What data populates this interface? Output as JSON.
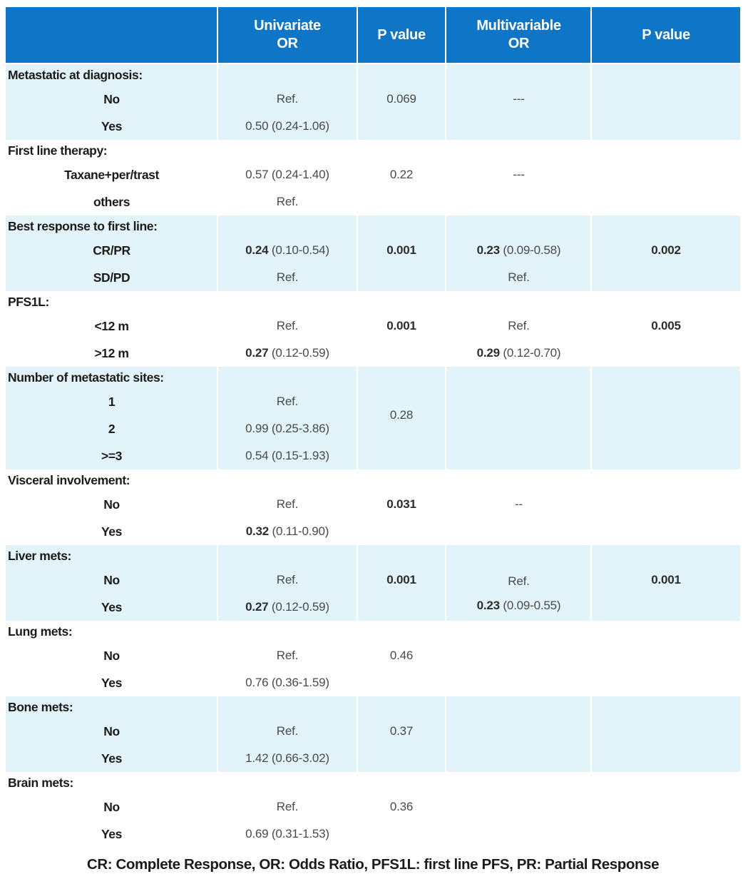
{
  "colors": {
    "header_bg": "#0f76c7",
    "header_text": "#ffffff",
    "shaded_section_bg": "#e2f4fa",
    "plain_section_bg": "#ffffff",
    "separator": "#ffffff",
    "label_text": "#1b1b1b",
    "value_text": "#4a4a4a"
  },
  "header": {
    "columns": [
      {
        "id": "row-label",
        "lines": []
      },
      {
        "id": "univariate-or",
        "lines": [
          "Univariate",
          "OR"
        ]
      },
      {
        "id": "p-value-univariate",
        "lines": [
          "P value"
        ]
      },
      {
        "id": "multivariable-or",
        "lines": [
          "Multivariable",
          "OR"
        ]
      },
      {
        "id": "p-value-multivariable",
        "lines": [
          "P value"
        ]
      }
    ]
  },
  "sections": [
    {
      "id": "metastatic-at-diagnosis",
      "label": "Metastatic at diagnosis:",
      "shaded": true,
      "rows": [
        "No",
        "Yes"
      ],
      "cells": [
        {
          "row": 1,
          "col": 2,
          "lines": [
            [
              {
                "t": "Ref."
              }
            ]
          ]
        },
        {
          "row": 1,
          "col": 3,
          "lines": [
            [
              {
                "t": "0.069"
              }
            ]
          ]
        },
        {
          "row": 1,
          "col": 4,
          "lines": [
            [
              {
                "t": "---"
              }
            ]
          ]
        },
        {
          "row": 2,
          "col": 2,
          "lines": [
            [
              {
                "t": "0.50 (0.24-1.06)"
              }
            ]
          ]
        }
      ]
    },
    {
      "id": "first-line-therapy",
      "label": "First line therapy:",
      "shaded": false,
      "rows": [
        "Taxane+per/trast",
        "others"
      ],
      "cells": [
        {
          "row": 1,
          "col": 2,
          "lines": [
            [
              {
                "t": "0.57 (0.24-1.40)"
              }
            ]
          ]
        },
        {
          "row": 1,
          "col": 3,
          "lines": [
            [
              {
                "t": "0.22"
              }
            ]
          ]
        },
        {
          "row": 1,
          "col": 4,
          "lines": [
            [
              {
                "t": "---"
              }
            ]
          ]
        },
        {
          "row": 2,
          "col": 2,
          "lines": [
            [
              {
                "t": "Ref."
              }
            ]
          ]
        }
      ]
    },
    {
      "id": "best-response-to-first-line",
      "label": "Best response to first line:",
      "shaded": true,
      "rows": [
        "CR/PR",
        "SD/PD"
      ],
      "cells": [
        {
          "row": 1,
          "col": 2,
          "lines": [
            [
              {
                "t": "0.24",
                "b": true
              },
              {
                "t": " (0.10-0.54)"
              }
            ]
          ]
        },
        {
          "row": 1,
          "col": 3,
          "lines": [
            [
              {
                "t": "0.001",
                "b": true
              }
            ]
          ]
        },
        {
          "row": 1,
          "col": 4,
          "lines": [
            [
              {
                "t": "0.23",
                "b": true
              },
              {
                "t": " (0.09-0.58)"
              }
            ]
          ]
        },
        {
          "row": 1,
          "col": 5,
          "lines": [
            [
              {
                "t": "0.002",
                "b": true
              }
            ]
          ]
        },
        {
          "row": 2,
          "col": 2,
          "lines": [
            [
              {
                "t": "Ref."
              }
            ]
          ]
        },
        {
          "row": 2,
          "col": 4,
          "lines": [
            [
              {
                "t": "Ref."
              }
            ]
          ]
        }
      ]
    },
    {
      "id": "pfs1l",
      "label": "PFS1L:",
      "shaded": false,
      "rows": [
        "<12 m",
        ">12 m"
      ],
      "cells": [
        {
          "row": 1,
          "col": 2,
          "lines": [
            [
              {
                "t": "Ref."
              }
            ]
          ]
        },
        {
          "row": 1,
          "col": 3,
          "lines": [
            [
              {
                "t": "0.001",
                "b": true
              }
            ]
          ]
        },
        {
          "row": 1,
          "col": 4,
          "lines": [
            [
              {
                "t": "Ref."
              }
            ]
          ]
        },
        {
          "row": 1,
          "col": 5,
          "lines": [
            [
              {
                "t": "0.005",
                "b": true
              }
            ]
          ]
        },
        {
          "row": 2,
          "col": 2,
          "lines": [
            [
              {
                "t": "0.27",
                "b": true
              },
              {
                "t": " (0.12-0.59)"
              }
            ]
          ]
        },
        {
          "row": 2,
          "col": 4,
          "lines": [
            [
              {
                "t": "0.29",
                "b": true
              },
              {
                "t": " (0.12-0.70)"
              }
            ]
          ]
        }
      ]
    },
    {
      "id": "number-of-metastatic-sites",
      "label": "Number of metastatic sites:",
      "shaded": true,
      "rows": [
        "1",
        "2",
        ">=3"
      ],
      "cells": [
        {
          "row": 1,
          "col": 2,
          "lines": [
            [
              {
                "t": "Ref."
              }
            ]
          ]
        },
        {
          "row": 1,
          "col": 3,
          "rowspan": 2,
          "lines": [
            [
              {
                "t": "0.28"
              }
            ]
          ]
        },
        {
          "row": 2,
          "col": 2,
          "lines": [
            [
              {
                "t": "0.99 (0.25-3.86)"
              }
            ]
          ]
        },
        {
          "row": 3,
          "col": 2,
          "lines": [
            [
              {
                "t": "0.54 (0.15-1.93)"
              }
            ]
          ]
        }
      ]
    },
    {
      "id": "visceral-involvement",
      "label": "Visceral involvement:",
      "shaded": false,
      "rows": [
        "No",
        "Yes"
      ],
      "cells": [
        {
          "row": 1,
          "col": 2,
          "lines": [
            [
              {
                "t": "Ref."
              }
            ]
          ]
        },
        {
          "row": 1,
          "col": 3,
          "lines": [
            [
              {
                "t": "0.031",
                "b": true
              }
            ]
          ]
        },
        {
          "row": 1,
          "col": 4,
          "lines": [
            [
              {
                "t": "--"
              }
            ]
          ]
        },
        {
          "row": 2,
          "col": 2,
          "lines": [
            [
              {
                "t": "0.32",
                "b": true
              },
              {
                "t": " (0.11-0.90)"
              }
            ]
          ]
        }
      ]
    },
    {
      "id": "liver-mets",
      "label": "Liver mets:",
      "shaded": true,
      "rows": [
        "No",
        "Yes"
      ],
      "cells": [
        {
          "row": 1,
          "col": 2,
          "lines": [
            [
              {
                "t": "Ref."
              }
            ]
          ]
        },
        {
          "row": 1,
          "col": 3,
          "lines": [
            [
              {
                "t": "0.001",
                "b": true
              }
            ]
          ]
        },
        {
          "row": 1,
          "col": 4,
          "rowspan": 2,
          "lines": [
            [
              {
                "t": "Ref."
              }
            ],
            [
              {
                "t": "0.23",
                "b": true
              },
              {
                "t": " (0.09-0.55)"
              }
            ]
          ]
        },
        {
          "row": 1,
          "col": 5,
          "lines": [
            [
              {
                "t": "0.001",
                "b": true
              }
            ]
          ]
        },
        {
          "row": 2,
          "col": 2,
          "lines": [
            [
              {
                "t": "0.27",
                "b": true
              },
              {
                "t": " (0.12-0.59)"
              }
            ]
          ]
        }
      ]
    },
    {
      "id": "lung-mets",
      "label": "Lung mets:",
      "shaded": false,
      "rows": [
        "No",
        "Yes"
      ],
      "cells": [
        {
          "row": 1,
          "col": 2,
          "lines": [
            [
              {
                "t": "Ref."
              }
            ]
          ]
        },
        {
          "row": 1,
          "col": 3,
          "lines": [
            [
              {
                "t": "0.46"
              }
            ]
          ]
        },
        {
          "row": 2,
          "col": 2,
          "lines": [
            [
              {
                "t": "0.76 (0.36-1.59)"
              }
            ]
          ]
        }
      ]
    },
    {
      "id": "bone-mets",
      "label": "Bone mets:",
      "shaded": true,
      "rows": [
        "No",
        "Yes"
      ],
      "cells": [
        {
          "row": 1,
          "col": 2,
          "lines": [
            [
              {
                "t": "Ref."
              }
            ]
          ]
        },
        {
          "row": 1,
          "col": 3,
          "lines": [
            [
              {
                "t": "0.37"
              }
            ]
          ]
        },
        {
          "row": 2,
          "col": 2,
          "lines": [
            [
              {
                "t": "1.42 (0.66-3.02)"
              }
            ]
          ]
        }
      ]
    },
    {
      "id": "brain-mets",
      "label": "Brain mets:",
      "shaded": false,
      "rows": [
        "No",
        "Yes"
      ],
      "cells": [
        {
          "row": 1,
          "col": 2,
          "lines": [
            [
              {
                "t": "Ref."
              }
            ]
          ]
        },
        {
          "row": 1,
          "col": 3,
          "lines": [
            [
              {
                "t": "0.36"
              }
            ]
          ]
        },
        {
          "row": 2,
          "col": 2,
          "lines": [
            [
              {
                "t": "0.69 (0.31-1.53)"
              }
            ]
          ]
        }
      ]
    }
  ],
  "footnote": "CR: Complete Response, OR: Odds Ratio, PFS1L: first line PFS, PR: Partial Response"
}
